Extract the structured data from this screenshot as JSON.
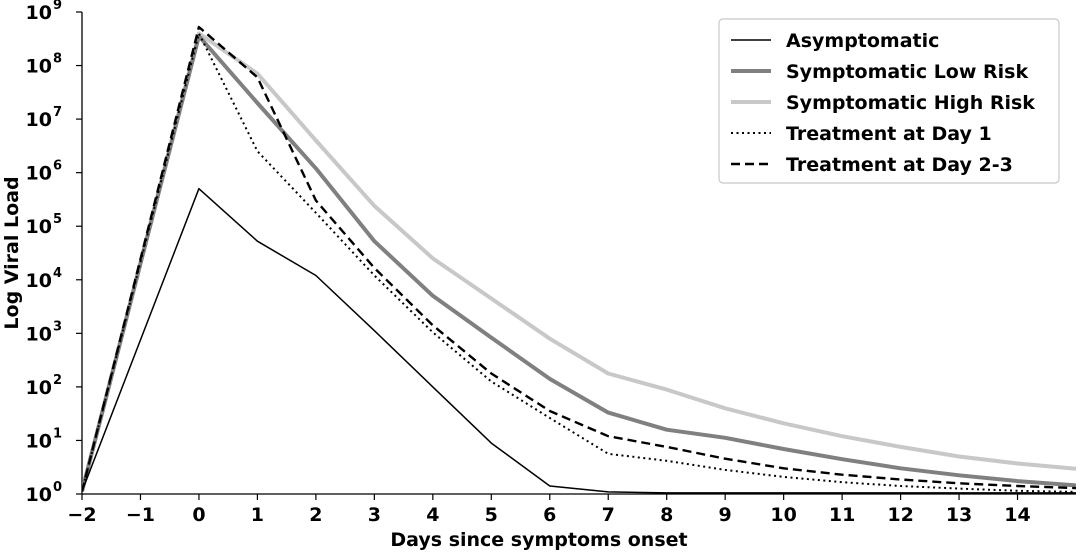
{
  "chart_data": {
    "type": "line",
    "title": "",
    "xlabel": "Days since symptoms onset",
    "ylabel": "Log Viral Load",
    "yscale": "log10",
    "xlim": [
      -2,
      15
    ],
    "ylim_exponent": [
      0,
      9
    ],
    "x_ticks": [
      -2,
      -1,
      0,
      1,
      2,
      3,
      4,
      5,
      6,
      7,
      8,
      9,
      10,
      11,
      12,
      13,
      14
    ],
    "x_tick_labels": [
      "−2",
      "−1",
      "0",
      "1",
      "2",
      "3",
      "4",
      "5",
      "6",
      "7",
      "8",
      "9",
      "10",
      "11",
      "12",
      "13",
      "14"
    ],
    "y_tick_exponents": [
      0,
      1,
      2,
      3,
      4,
      5,
      6,
      7,
      8,
      9
    ],
    "y_tick_base": "10",
    "grid": false,
    "legend_position": "top-right",
    "x": [
      -2,
      0,
      1,
      2,
      3,
      4,
      5,
      6,
      7,
      8,
      9,
      10,
      11,
      12,
      13,
      14,
      15
    ],
    "series": [
      {
        "name": "Asymptomatic",
        "style": "solid-thin",
        "color": "#000000",
        "log10_values": [
          0.05,
          5.7,
          4.72,
          4.08,
          3.05,
          2.0,
          0.95,
          0.15,
          0.04,
          0.02,
          0.02,
          0.02,
          0.02,
          0.02,
          0.02,
          0.02,
          0.02
        ]
      },
      {
        "name": "Symptomatic Low Risk",
        "style": "solid-thick",
        "color": "#808080",
        "log10_values": [
          0.05,
          8.55,
          7.3,
          6.08,
          4.72,
          3.7,
          2.92,
          2.15,
          1.52,
          1.2,
          1.05,
          0.84,
          0.65,
          0.48,
          0.35,
          0.24,
          0.16
        ]
      },
      {
        "name": "Symptomatic High Risk",
        "style": "solid-thick",
        "color": "#c8c8c8",
        "log10_values": [
          0.05,
          8.6,
          7.85,
          6.6,
          5.38,
          4.4,
          3.65,
          2.9,
          2.25,
          1.95,
          1.6,
          1.32,
          1.08,
          0.88,
          0.7,
          0.57,
          0.47
        ]
      },
      {
        "name": "Treatment at Day 1",
        "style": "dotted",
        "color": "#000000",
        "log10_values": [
          0.05,
          8.6,
          6.4,
          5.25,
          4.08,
          3.02,
          2.1,
          1.42,
          0.75,
          0.62,
          0.45,
          0.32,
          0.22,
          0.15,
          0.1,
          0.06,
          0.04
        ]
      },
      {
        "name": "Treatment at Day 2-3",
        "style": "dashed",
        "color": "#000000",
        "log10_values": [
          0.05,
          8.72,
          7.78,
          5.48,
          4.22,
          3.15,
          2.25,
          1.55,
          1.08,
          0.88,
          0.66,
          0.48,
          0.36,
          0.27,
          0.2,
          0.15,
          0.11
        ]
      }
    ]
  }
}
